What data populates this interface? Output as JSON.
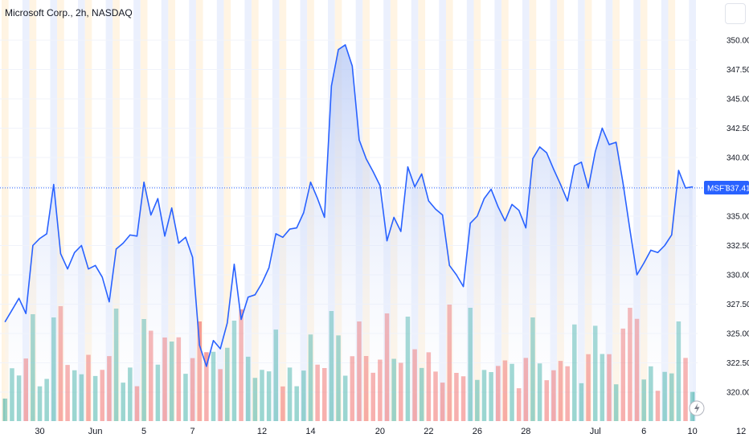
{
  "header": {
    "title": "Microsoft Corp., 2h, NASDAQ"
  },
  "price_label": {
    "symbol": "MSFT",
    "value": "337.41"
  },
  "colors": {
    "line": "#2962ff",
    "area_top": "#b3c6f5",
    "area_bottom": "#ffffff",
    "volume_up": "#26a69a",
    "volume_down": "#ef5350",
    "session_pre": "#fff1dc",
    "session_post": "#e6ecfc",
    "axis_text": "#131722",
    "grid": "#f0f3fa"
  },
  "icons": {
    "corner": "square-button-icon",
    "replay": "lightning-icon"
  },
  "chart_data": {
    "type": "line",
    "symbol": "MSFT",
    "interval": "2h",
    "last_price": 337.41,
    "ylim": [
      317.5,
      351.5
    ],
    "y_ticks": [
      320,
      322.5,
      325,
      327.5,
      330,
      332.5,
      335,
      337.5,
      340,
      342.5,
      345,
      347.5,
      350
    ],
    "y_tick_labels": [
      "320.00",
      "322.50",
      "325.00",
      "327.50",
      "330.00",
      "332.50",
      "335.00",
      "337.50",
      "340.00",
      "342.50",
      "345.00",
      "347.50",
      "350.00"
    ],
    "x_labels": [
      {
        "label": "30",
        "bar": 5
      },
      {
        "label": "Jun",
        "bar": 13
      },
      {
        "label": "5",
        "bar": 20
      },
      {
        "label": "7",
        "bar": 27
      },
      {
        "label": "12",
        "bar": 37
      },
      {
        "label": "14",
        "bar": 44
      },
      {
        "label": "20",
        "bar": 54
      },
      {
        "label": "22",
        "bar": 61
      },
      {
        "label": "26",
        "bar": 68
      },
      {
        "label": "28",
        "bar": 75
      },
      {
        "label": "Jul",
        "bar": 85
      },
      {
        "label": "6",
        "bar": 92
      },
      {
        "label": "10",
        "bar": 99
      },
      {
        "label": "12",
        "bar": 106
      }
    ],
    "grid": true,
    "legend": "none",
    "series": [
      {
        "values": [
          326,
          327,
          328,
          326.7,
          332.5,
          333.1,
          333.5,
          337.7,
          331.8,
          330.5,
          331.9,
          332.5,
          330.5,
          330.8,
          329.8,
          327.7,
          332.2,
          332.7,
          333.4,
          333.3,
          337.9,
          335.1,
          336.5,
          333.3,
          335.7,
          332.7,
          333.2,
          331.5,
          324.0,
          322.2,
          324.4,
          323.7,
          325.9,
          330.9,
          326.2,
          328.1,
          328.3,
          329.3,
          330.6,
          333.5,
          333.2,
          333.9,
          334.0,
          335.3,
          337.9,
          336.5,
          334.9,
          346.1,
          349.2,
          349.6,
          347.8,
          341.5,
          339.9,
          338.8,
          337.6,
          332.9,
          334.9,
          333.7,
          339.2,
          337.5,
          338.6,
          336.3,
          335.6,
          335.1,
          330.8,
          330.0,
          329.0,
          334.4,
          335.0,
          336.5,
          337.3,
          335.8,
          334.6,
          336.0,
          335.5,
          334.0,
          339.9,
          340.9,
          340.4,
          339.0,
          337.7,
          336.3,
          339.3,
          339.6,
          337.4,
          340.5,
          342.5,
          341.1,
          341.3,
          337.8,
          333.8,
          330.0,
          331.0,
          332.1,
          331.9,
          332.5,
          333.4,
          338.9,
          337.4,
          337.5
        ]
      }
    ]
  }
}
